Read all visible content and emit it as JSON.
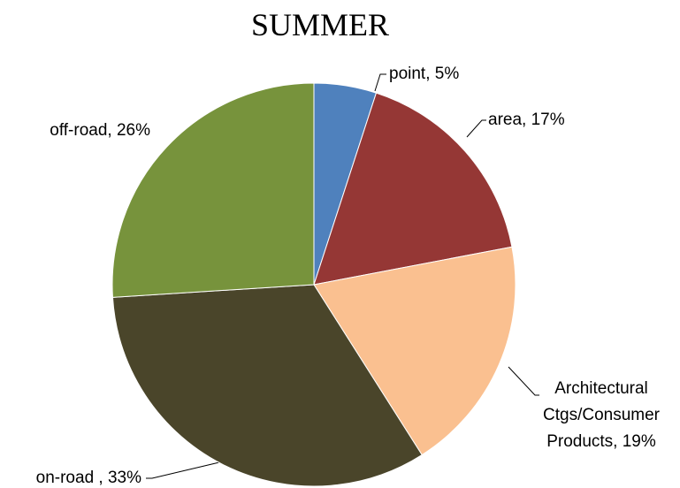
{
  "chart_data": {
    "type": "pie",
    "title": "SUMMER",
    "values": [
      5,
      17,
      19,
      33,
      26
    ],
    "value_labels": [
      [
        "point, 5%"
      ],
      [
        "area, 17%"
      ],
      [
        "Architectural",
        "Ctgs/Consumer",
        "Products, 19%"
      ],
      [
        "on-road , 33%"
      ],
      [
        "off-road, 26%"
      ]
    ],
    "colors": [
      "#4f81bd",
      "#953735",
      "#fac090",
      "#4a452a",
      "#77933c"
    ]
  }
}
